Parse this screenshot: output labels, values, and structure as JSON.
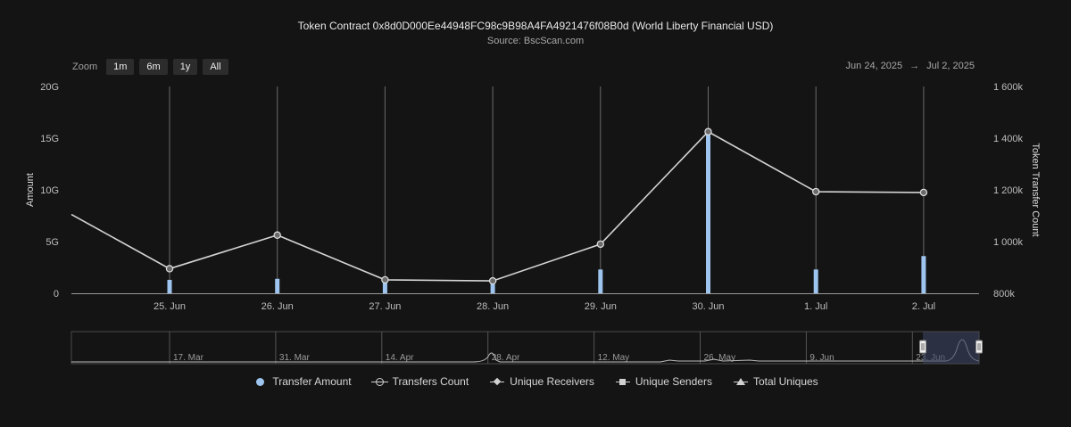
{
  "title": "Token Contract 0x8d0D000Ee44948FC98c9B98A4FA4921476f08B0d (World Liberty Financial USD)",
  "subtitle": "Source: BscScan.com",
  "zoom": {
    "label": "Zoom",
    "buttons": [
      "1m",
      "6m",
      "1y",
      "All"
    ]
  },
  "range": {
    "from": "Jun 24, 2025",
    "arrow": "→",
    "to": "Jul 2, 2025"
  },
  "legend": [
    {
      "label": "Transfer Amount",
      "symbol": "dot"
    },
    {
      "label": "Transfers Count",
      "symbol": "ring"
    },
    {
      "label": "Unique Receivers",
      "symbol": "diamond"
    },
    {
      "label": "Unique Senders",
      "symbol": "square"
    },
    {
      "label": "Total Uniques",
      "symbol": "triangle"
    }
  ],
  "colors": {
    "background": "#141414",
    "bar": "#9ec5f0",
    "line": "#d4d4d4",
    "grid": "#6a6a6a",
    "navigator_mask": "#3a4560"
  },
  "chart_data": {
    "type": "bar+line",
    "x_categories": [
      "25. Jun",
      "26. Jun",
      "27. Jun",
      "28. Jun",
      "29. Jun",
      "30. Jun",
      "1. Jul",
      "2. Jul"
    ],
    "y_left": {
      "label": "Amount",
      "ticks": [
        "0",
        "5G",
        "10G",
        "15G",
        "20G"
      ],
      "range": [
        0,
        20000000000
      ]
    },
    "y_right": {
      "label": "Token Transfer Count",
      "ticks": [
        "800k",
        "1 000k",
        "1 200k",
        "1 400k",
        "1 600k"
      ],
      "range": [
        800000,
        1600000
      ]
    },
    "series": [
      {
        "name": "Transfer Amount",
        "type": "column",
        "axis": "left",
        "values": [
          1300000000,
          1400000000,
          1200000000,
          1100000000,
          2300000000,
          15800000000,
          2300000000,
          3600000000
        ]
      },
      {
        "name": "Transfers Count",
        "type": "line",
        "axis": "right",
        "values": [
          895000,
          1025000,
          852000,
          848000,
          990000,
          1425000,
          1193000,
          1190000
        ],
        "incoming_prior_value": 1105000
      }
    ],
    "navigator": {
      "labels": [
        "17. Mar",
        "31. Mar",
        "14. Apr",
        "28. Apr",
        "12. May",
        "26. May",
        "9. Jun",
        "23. Jun"
      ]
    },
    "grid": true,
    "legend_position": "bottom-center"
  }
}
